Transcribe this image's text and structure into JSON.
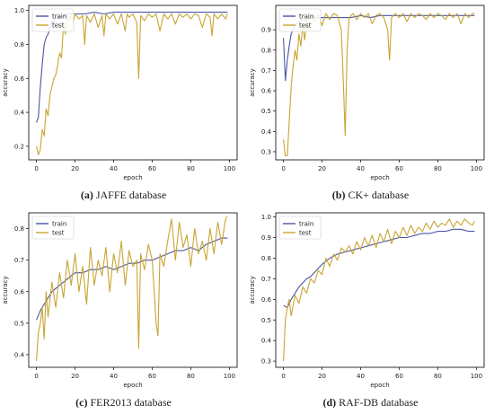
{
  "colors": {
    "train": "#4a56a6",
    "test": "#c8a532",
    "axis": "#000000",
    "caption": "#222222"
  },
  "chart_data": [
    {
      "type": "line",
      "caption_label": "(a)",
      "caption_text": "JAFFE database",
      "xlabel": "epoch",
      "ylabel": "accuracy",
      "xlim": [
        -4,
        104
      ],
      "ylim": [
        0.12,
        1.03
      ],
      "xticks": [
        0,
        20,
        40,
        60,
        80,
        100
      ],
      "xtick_labels": [
        "0",
        "20",
        "40",
        "60",
        "80",
        "100"
      ],
      "yticks": [
        0.2,
        0.4,
        0.6,
        0.8,
        1.0
      ],
      "ytick_labels": [
        "0.2",
        "0.4",
        "0.6",
        "0.8",
        "1.0"
      ],
      "legend_position": "top-left",
      "series": [
        {
          "name": "train",
          "color": "#4a56a6",
          "x": [
            0,
            1,
            2,
            3,
            4,
            5,
            6,
            7,
            8,
            9,
            10,
            11,
            12,
            13,
            14,
            15,
            16,
            18,
            20,
            25,
            30,
            35,
            40,
            45,
            50,
            55,
            60,
            65,
            70,
            75,
            80,
            85,
            90,
            95,
            99
          ],
          "y": [
            0.34,
            0.37,
            0.55,
            0.68,
            0.8,
            0.84,
            0.86,
            0.9,
            0.94,
            0.92,
            0.96,
            0.95,
            0.97,
            0.96,
            0.97,
            0.97,
            0.98,
            0.98,
            0.98,
            0.98,
            0.99,
            0.98,
            0.99,
            0.99,
            0.99,
            0.99,
            0.99,
            0.99,
            0.99,
            0.99,
            0.99,
            0.99,
            0.99,
            0.99,
            0.99
          ]
        },
        {
          "name": "test",
          "color": "#c8a532",
          "x": [
            0,
            1,
            2,
            3,
            4,
            5,
            6,
            7,
            8,
            9,
            10,
            11,
            12,
            13,
            14,
            15,
            16,
            17,
            18,
            19,
            20,
            22,
            24,
            25,
            26,
            28,
            30,
            32,
            34,
            35,
            36,
            38,
            40,
            42,
            44,
            46,
            47,
            48,
            50,
            52,
            53,
            54,
            56,
            58,
            60,
            62,
            64,
            66,
            68,
            70,
            72,
            74,
            76,
            78,
            80,
            82,
            84,
            86,
            88,
            90,
            91,
            92,
            94,
            96,
            98,
            99
          ],
          "y": [
            0.2,
            0.15,
            0.18,
            0.3,
            0.26,
            0.42,
            0.38,
            0.5,
            0.55,
            0.6,
            0.62,
            0.68,
            0.75,
            0.72,
            0.92,
            0.86,
            0.96,
            0.94,
            0.97,
            0.93,
            0.98,
            0.95,
            0.97,
            0.8,
            0.97,
            0.93,
            0.98,
            0.9,
            0.97,
            0.85,
            0.98,
            0.95,
            0.98,
            0.92,
            0.98,
            0.88,
            0.98,
            0.96,
            0.98,
            0.93,
            0.6,
            0.97,
            0.94,
            0.98,
            0.96,
            0.98,
            0.88,
            0.98,
            0.95,
            0.98,
            0.92,
            0.98,
            0.96,
            0.98,
            0.95,
            0.98,
            0.97,
            0.9,
            0.98,
            0.96,
            0.85,
            0.98,
            0.95,
            0.98,
            0.95,
            0.98
          ]
        }
      ]
    },
    {
      "type": "line",
      "caption_label": "(b)",
      "caption_text": "CK+ database",
      "xlabel": "epoch",
      "ylabel": "accuracy",
      "xlim": [
        -4,
        104
      ],
      "ylim": [
        0.26,
        1.02
      ],
      "xticks": [
        0,
        20,
        40,
        60,
        80,
        100
      ],
      "xtick_labels": [
        "0",
        "20",
        "40",
        "60",
        "80",
        "100"
      ],
      "yticks": [
        0.3,
        0.4,
        0.5,
        0.6,
        0.7,
        0.8,
        0.9
      ],
      "ytick_labels": [
        "0.3",
        "0.4",
        "0.5",
        "0.6",
        "0.7",
        "0.8",
        "0.9"
      ],
      "legend_position": "top-left",
      "series": [
        {
          "name": "train",
          "color": "#4a56a6",
          "x": [
            0,
            1,
            2,
            3,
            4,
            5,
            6,
            7,
            8,
            10,
            12,
            15,
            20,
            25,
            30,
            35,
            40,
            45,
            50,
            55,
            60,
            65,
            70,
            75,
            80,
            85,
            90,
            95,
            99
          ],
          "y": [
            0.86,
            0.65,
            0.75,
            0.82,
            0.88,
            0.9,
            0.92,
            0.93,
            0.94,
            0.95,
            0.95,
            0.96,
            0.96,
            0.96,
            0.96,
            0.96,
            0.97,
            0.96,
            0.97,
            0.97,
            0.97,
            0.97,
            0.97,
            0.97,
            0.97,
            0.97,
            0.97,
            0.97,
            0.97
          ]
        },
        {
          "name": "test",
          "color": "#c8a532",
          "x": [
            0,
            1,
            2,
            3,
            4,
            5,
            6,
            7,
            8,
            9,
            10,
            11,
            12,
            13,
            14,
            16,
            18,
            20,
            22,
            24,
            26,
            28,
            30,
            31,
            32,
            33,
            34,
            36,
            38,
            40,
            42,
            44,
            46,
            48,
            50,
            52,
            54,
            55,
            56,
            58,
            60,
            62,
            64,
            66,
            68,
            70,
            72,
            74,
            76,
            78,
            80,
            82,
            84,
            86,
            88,
            90,
            92,
            94,
            96,
            98,
            99
          ],
          "y": [
            0.36,
            0.28,
            0.28,
            0.45,
            0.62,
            0.72,
            0.8,
            0.75,
            0.88,
            0.82,
            0.92,
            0.85,
            0.95,
            0.9,
            0.96,
            0.94,
            0.98,
            0.92,
            0.98,
            0.95,
            0.98,
            0.97,
            0.9,
            0.65,
            0.38,
            0.8,
            0.96,
            0.98,
            0.95,
            0.98,
            0.96,
            0.98,
            0.93,
            0.97,
            0.98,
            0.96,
            0.9,
            0.75,
            0.96,
            0.98,
            0.96,
            0.98,
            0.94,
            0.98,
            0.96,
            0.98,
            0.97,
            0.95,
            0.98,
            0.96,
            0.98,
            0.97,
            0.95,
            0.98,
            0.96,
            0.98,
            0.93,
            0.98,
            0.96,
            0.98,
            0.98
          ]
        }
      ]
    },
    {
      "type": "line",
      "caption_label": "(c)",
      "caption_text": "FER2013 database",
      "xlabel": "epoch",
      "ylabel": "accuracy",
      "xlim": [
        -4,
        104
      ],
      "ylim": [
        0.36,
        0.85
      ],
      "xticks": [
        0,
        20,
        40,
        60,
        80,
        100
      ],
      "xtick_labels": [
        "0",
        "20",
        "40",
        "60",
        "80",
        "100"
      ],
      "yticks": [
        0.4,
        0.5,
        0.6,
        0.7,
        0.8
      ],
      "ytick_labels": [
        "0.4",
        "0.5",
        "0.6",
        "0.7",
        "0.8"
      ],
      "legend_position": "top-left",
      "series": [
        {
          "name": "train",
          "color": "#4a56a6",
          "x": [
            0,
            2,
            4,
            6,
            8,
            10,
            12,
            14,
            16,
            18,
            20,
            24,
            28,
            32,
            36,
            40,
            44,
            48,
            52,
            56,
            60,
            64,
            68,
            72,
            76,
            80,
            84,
            88,
            92,
            96,
            99
          ],
          "y": [
            0.51,
            0.54,
            0.56,
            0.58,
            0.6,
            0.61,
            0.62,
            0.63,
            0.64,
            0.65,
            0.66,
            0.66,
            0.67,
            0.67,
            0.68,
            0.67,
            0.68,
            0.69,
            0.69,
            0.7,
            0.7,
            0.71,
            0.72,
            0.73,
            0.73,
            0.74,
            0.73,
            0.75,
            0.76,
            0.77,
            0.77
          ]
        },
        {
          "name": "test",
          "color": "#c8a532",
          "x": [
            0,
            1,
            2,
            3,
            4,
            5,
            6,
            8,
            10,
            12,
            14,
            16,
            18,
            20,
            22,
            24,
            26,
            28,
            30,
            32,
            34,
            36,
            38,
            40,
            42,
            44,
            46,
            48,
            50,
            52,
            53,
            54,
            56,
            58,
            60,
            62,
            63,
            64,
            66,
            68,
            70,
            72,
            74,
            76,
            78,
            80,
            82,
            84,
            86,
            88,
            90,
            92,
            94,
            96,
            98,
            99
          ],
          "y": [
            0.38,
            0.47,
            0.5,
            0.55,
            0.45,
            0.6,
            0.52,
            0.63,
            0.55,
            0.66,
            0.58,
            0.7,
            0.62,
            0.72,
            0.6,
            0.68,
            0.56,
            0.74,
            0.62,
            0.7,
            0.65,
            0.74,
            0.6,
            0.72,
            0.66,
            0.76,
            0.62,
            0.73,
            0.68,
            0.7,
            0.42,
            0.72,
            0.67,
            0.75,
            0.7,
            0.5,
            0.46,
            0.72,
            0.68,
            0.76,
            0.83,
            0.7,
            0.82,
            0.74,
            0.78,
            0.68,
            0.8,
            0.72,
            0.76,
            0.7,
            0.8,
            0.72,
            0.82,
            0.75,
            0.83,
            0.84
          ]
        }
      ]
    },
    {
      "type": "line",
      "caption_label": "(d)",
      "caption_text": "RAF-DB database",
      "xlabel": "epoch",
      "ylabel": "accuracy",
      "xlim": [
        -4,
        104
      ],
      "ylim": [
        0.27,
        1.02
      ],
      "xticks": [
        0,
        20,
        40,
        60,
        80,
        100
      ],
      "xtick_labels": [
        "0",
        "20",
        "40",
        "60",
        "80",
        "100"
      ],
      "yticks": [
        0.3,
        0.4,
        0.5,
        0.6,
        0.7,
        0.8,
        0.9,
        1.0
      ],
      "ytick_labels": [
        "0.3",
        "0.4",
        "0.5",
        "0.6",
        "0.7",
        "0.8",
        "0.9",
        "1.0"
      ],
      "legend_position": "top-left",
      "series": [
        {
          "name": "train",
          "color": "#4a56a6",
          "x": [
            0,
            2,
            4,
            6,
            8,
            10,
            12,
            14,
            16,
            18,
            20,
            24,
            28,
            32,
            36,
            40,
            44,
            48,
            52,
            56,
            60,
            64,
            68,
            72,
            76,
            80,
            84,
            88,
            92,
            96,
            99
          ],
          "y": [
            0.57,
            0.56,
            0.6,
            0.63,
            0.66,
            0.68,
            0.7,
            0.71,
            0.73,
            0.75,
            0.77,
            0.8,
            0.82,
            0.83,
            0.84,
            0.85,
            0.86,
            0.87,
            0.88,
            0.89,
            0.9,
            0.9,
            0.91,
            0.92,
            0.92,
            0.93,
            0.93,
            0.94,
            0.94,
            0.93,
            0.93
          ]
        },
        {
          "name": "test",
          "color": "#c8a532",
          "x": [
            0,
            1,
            2,
            3,
            4,
            6,
            8,
            10,
            12,
            14,
            16,
            18,
            20,
            22,
            24,
            26,
            28,
            30,
            32,
            34,
            36,
            38,
            40,
            42,
            44,
            46,
            48,
            50,
            52,
            54,
            56,
            58,
            60,
            62,
            64,
            66,
            68,
            70,
            72,
            74,
            76,
            78,
            80,
            82,
            84,
            86,
            88,
            90,
            92,
            94,
            96,
            98,
            99
          ],
          "y": [
            0.3,
            0.5,
            0.56,
            0.6,
            0.52,
            0.62,
            0.58,
            0.66,
            0.63,
            0.7,
            0.68,
            0.74,
            0.72,
            0.8,
            0.76,
            0.82,
            0.79,
            0.85,
            0.83,
            0.86,
            0.82,
            0.88,
            0.84,
            0.9,
            0.86,
            0.91,
            0.85,
            0.92,
            0.88,
            0.94,
            0.87,
            0.93,
            0.9,
            0.95,
            0.91,
            0.96,
            0.92,
            0.95,
            0.93,
            0.97,
            0.94,
            0.98,
            0.95,
            0.97,
            0.96,
            0.99,
            0.95,
            0.98,
            0.96,
            0.99,
            0.97,
            0.96,
            0.98
          ]
        }
      ]
    }
  ]
}
